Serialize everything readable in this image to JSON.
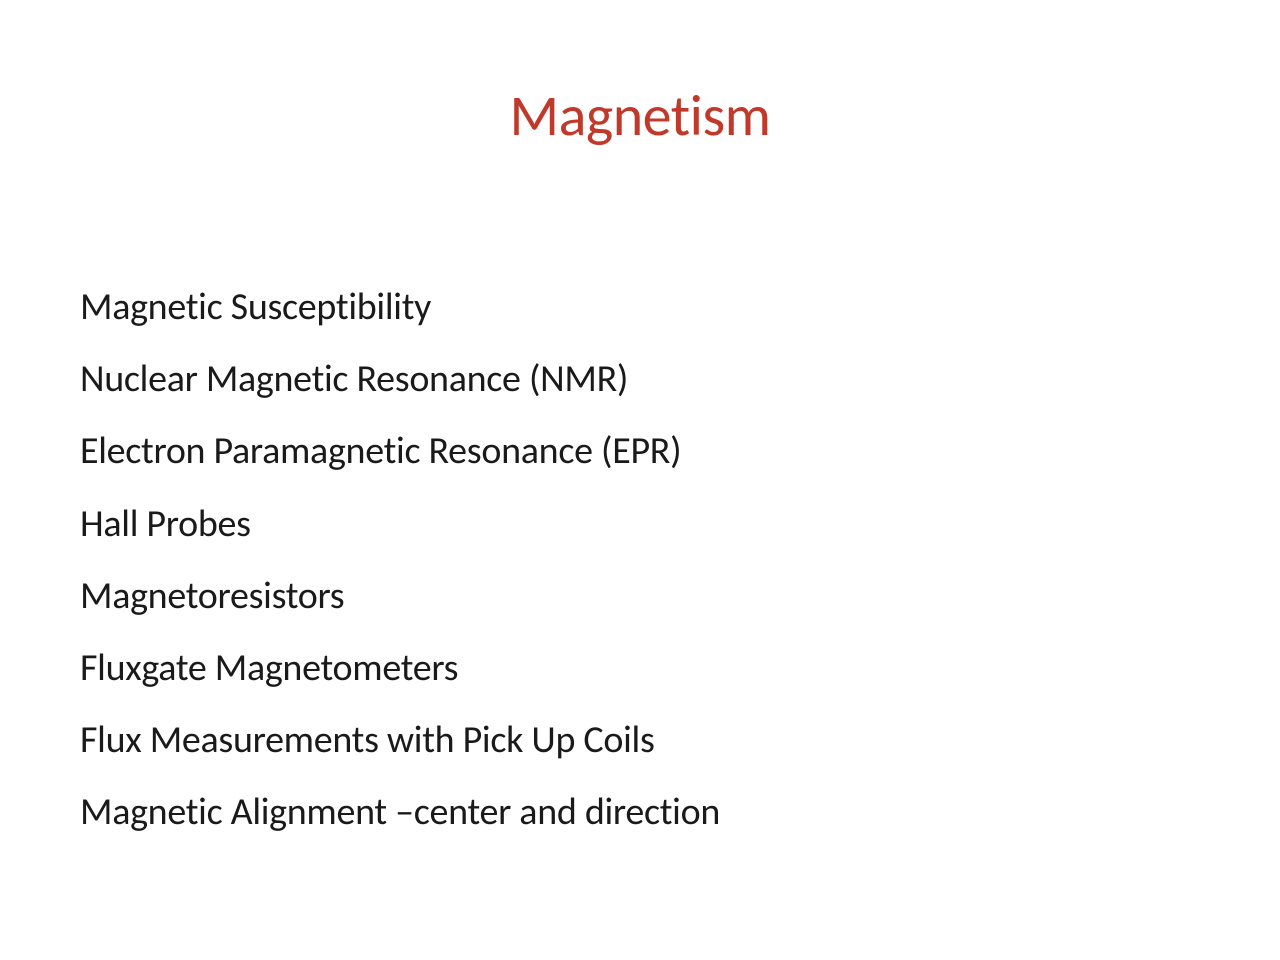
{
  "slide": {
    "title": "Magnetism",
    "title_color": "#c0392b",
    "title_fontsize": 58,
    "background_color": "#ffffff",
    "body_color": "#1a1a1a",
    "body_fontsize": 38,
    "items": [
      "Magnetic Susceptibility",
      "Nuclear Magnetic Resonance (NMR)",
      "Electron Paramagnetic Resonance (EPR)",
      "Hall Probes",
      "Magnetoresistors",
      "Fluxgate Magnetometers",
      "Flux Measurements with Pick Up Coils",
      "Magnetic Alignment –center and direction"
    ]
  }
}
